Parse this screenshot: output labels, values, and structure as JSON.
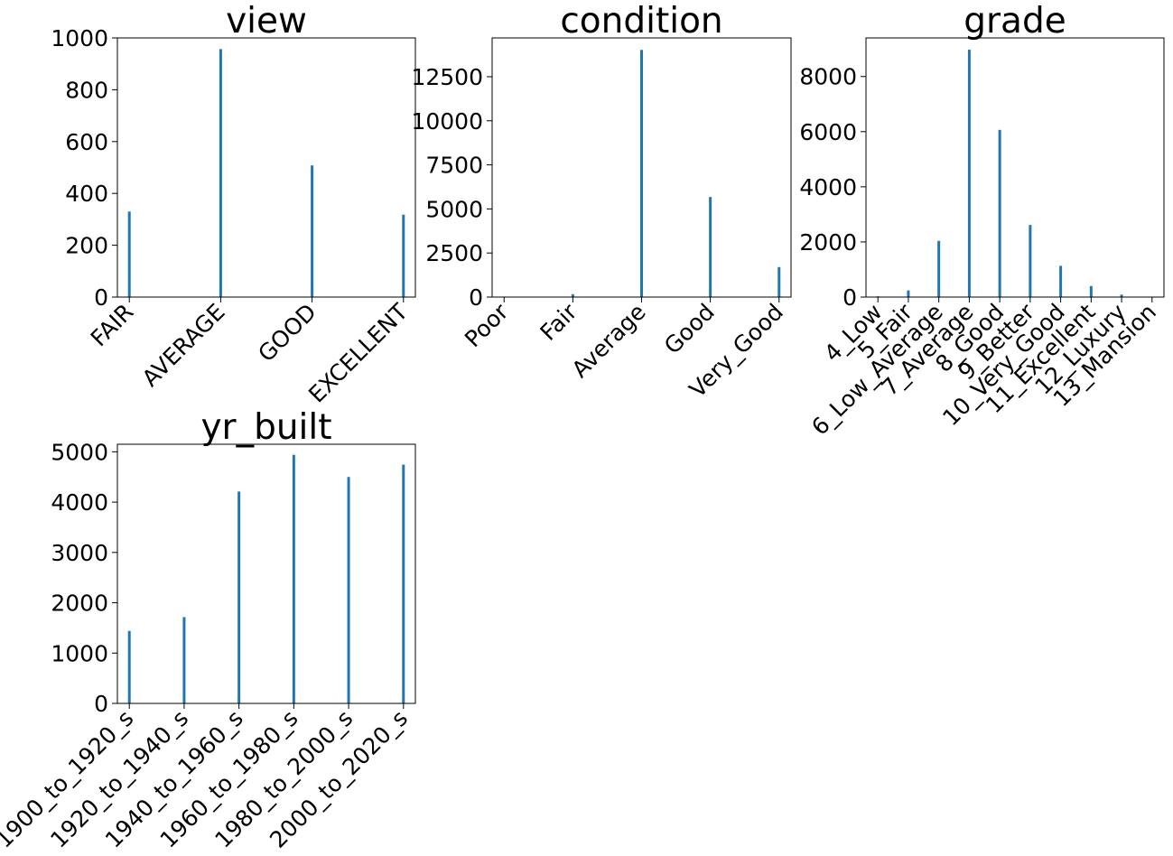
{
  "chart_data": [
    {
      "type": "bar",
      "title": "view",
      "categories": [
        "FAIR",
        "AVERAGE",
        "GOOD",
        "EXCELLENT"
      ],
      "values": [
        330,
        957,
        508,
        318
      ],
      "yticks": [
        0,
        200,
        400,
        600,
        800,
        1000
      ],
      "ylim": [
        0,
        1000
      ],
      "color": "#1f77b4"
    },
    {
      "type": "bar",
      "title": "condition",
      "categories": [
        "Poor",
        "Fair",
        "Average",
        "Good",
        "Very_Good"
      ],
      "values": [
        29,
        162,
        14020,
        5677,
        1701
      ],
      "yticks": [
        0,
        2500,
        5000,
        7500,
        10000,
        12500
      ],
      "ylim": [
        0,
        14700
      ],
      "color": "#1f77b4"
    },
    {
      "type": "bar",
      "title": "grade",
      "categories": [
        "4_Low",
        "5_Fair",
        "6_Low_Average",
        "7_Average",
        "8_Good",
        "9_Better",
        "10_Very_Good",
        "11_Excellent",
        "12_Luxury",
        "13_Mansion"
      ],
      "values": [
        27,
        242,
        2038,
        8974,
        6065,
        2615,
        1134,
        399,
        89,
        13
      ],
      "yticks": [
        0,
        2000,
        4000,
        6000,
        8000
      ],
      "ylim": [
        0,
        9400
      ],
      "color": "#1f77b4"
    },
    {
      "type": "bar",
      "title": "yr_built",
      "categories": [
        "1900_to_1920_s",
        "1920_to_1940_s",
        "1940_to_1960_s",
        "1960_to_1980_s",
        "1980_to_2000_s",
        "2000_to_2020_s"
      ],
      "values": [
        1440,
        1715,
        4210,
        4940,
        4500,
        4745
      ],
      "yticks": [
        0,
        1000,
        2000,
        3000,
        4000,
        5000
      ],
      "ylim": [
        0,
        5150
      ],
      "color": "#1f77b4"
    }
  ]
}
